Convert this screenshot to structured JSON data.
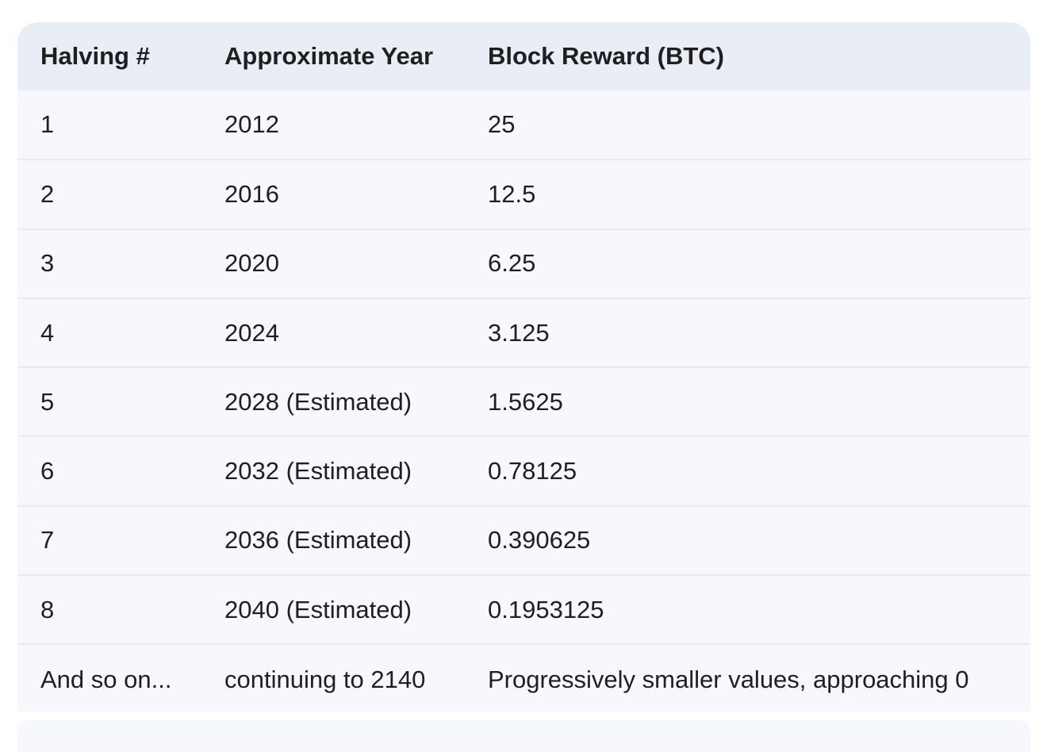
{
  "table": {
    "headers": [
      "Halving #",
      "Approximate Year",
      "Block Reward (BTC)"
    ],
    "rows": [
      [
        "1",
        "2012",
        "25"
      ],
      [
        "2",
        "2016",
        "12.5"
      ],
      [
        "3",
        "2020",
        "6.25"
      ],
      [
        "4",
        "2024",
        "3.125"
      ],
      [
        "5",
        "2028 (Estimated)",
        "1.5625"
      ],
      [
        "6",
        "2032 (Estimated)",
        "0.78125"
      ],
      [
        "7",
        "2036 (Estimated)",
        "0.390625"
      ],
      [
        "8",
        "2040 (Estimated)",
        "0.1953125"
      ],
      [
        "And so on...",
        "continuing to 2140",
        "Progressively smaller values, approaching 0"
      ]
    ]
  }
}
